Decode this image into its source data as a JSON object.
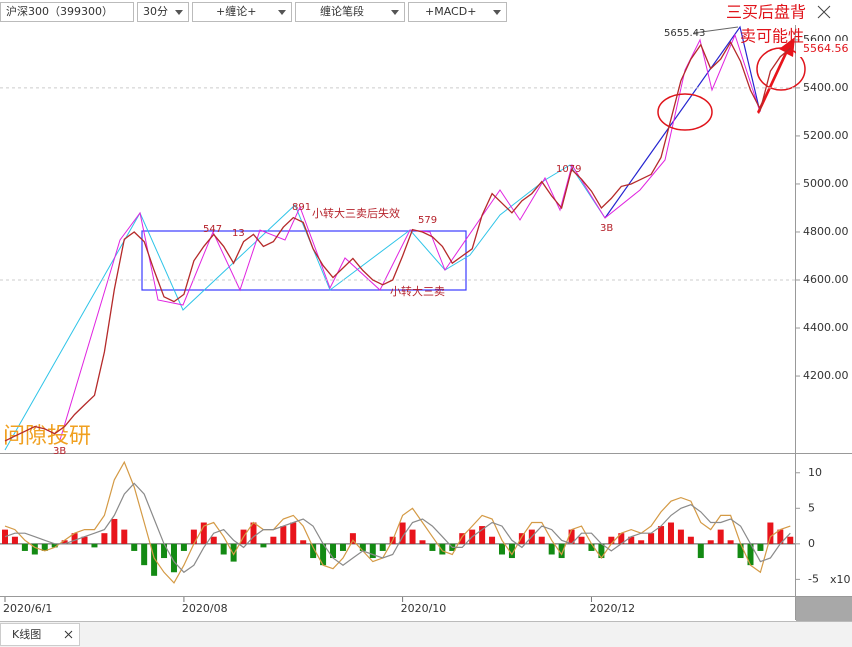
{
  "toolbar": {
    "symbol": "沪深300（399300）",
    "period": "30分",
    "indicator1": "+缠论+",
    "indicator2": "缠论笔段",
    "indicator3": "+MACD+"
  },
  "watermark": "间隙投研",
  "tab": "K线图",
  "chart_data": [
    {
      "type": "line",
      "series": [
        {
          "color": "#b52a2a",
          "values": [
            3930,
            3950,
            3970,
            3990,
            3980,
            3960,
            3990,
            4040,
            4080,
            4120,
            4300,
            4560,
            4770,
            4800,
            4760,
            4640,
            4530,
            4510,
            4540,
            4680,
            4740,
            4790,
            4740,
            4670,
            4760,
            4790,
            4740,
            4760,
            4820,
            4860,
            4840,
            4730,
            4660,
            4610,
            4650,
            4690,
            4640,
            4600,
            4580,
            4600,
            4700,
            4810,
            4800,
            4780,
            4740,
            4670,
            4700,
            4730,
            4870,
            4960,
            4920,
            4880,
            4930,
            4960,
            5010,
            4950,
            4900,
            5060,
            5020,
            4970,
            4900,
            4940,
            4990,
            5000,
            5020,
            5040,
            5110,
            5270,
            5430,
            5520,
            5580,
            5480,
            5520,
            5590,
            5510,
            5390,
            5310,
            5470,
            5530,
            5565
          ]
        }
      ],
      "ylim": [
        3892,
        5662
      ],
      "yticks": [
        {
          "value": 4200,
          "label": "4200.00"
        },
        {
          "value": 4400,
          "label": "4400.00"
        },
        {
          "value": 4600,
          "label": "4600.00"
        },
        {
          "value": 4800,
          "label": "4800.00"
        },
        {
          "value": 5000,
          "label": "5000.00"
        },
        {
          "value": 5200,
          "label": "5200.00"
        },
        {
          "value": 5400,
          "label": "5400.00"
        },
        {
          "value": 5600,
          "label": "5600.00"
        }
      ],
      "last_price_label": "5564.56",
      "annotations": [
        "5655.43",
        "891",
        "小转大三卖后失效",
        "547",
        "13",
        "579",
        "小转大三卖",
        "1079",
        "3B",
        "3B",
        "三买后盘背",
        "卖可能性"
      ]
    },
    {
      "type": "bar",
      "categories": [
        "2020/6/1",
        null,
        null,
        null,
        null,
        null,
        null,
        null,
        null,
        null,
        null,
        null,
        null,
        null,
        null,
        null,
        null,
        null,
        "2020/08",
        null,
        null,
        null,
        null,
        null,
        null,
        null,
        null,
        null,
        null,
        null,
        null,
        null,
        null,
        null,
        null,
        null,
        null,
        null,
        null,
        null,
        "2020/10",
        null,
        null,
        null,
        null,
        null,
        null,
        null,
        null,
        null,
        null,
        null,
        null,
        null,
        null,
        null,
        null,
        null,
        null,
        "2020/12",
        null,
        null,
        null,
        null,
        null,
        null,
        null,
        null,
        null,
        null,
        null,
        null,
        null,
        null,
        null,
        null,
        null,
        null,
        null,
        null
      ],
      "series": [
        {
          "up_color": "#e8141b",
          "down_color": "#138a13",
          "values": [
            2,
            1,
            -1,
            -1.5,
            -1,
            -0.5,
            0.5,
            1.5,
            1,
            -0.5,
            1.5,
            3.5,
            2,
            -1,
            -3,
            -4.5,
            -2,
            -4,
            -1,
            2,
            3,
            1,
            -1.5,
            -2.5,
            2,
            3,
            -0.5,
            1,
            2.5,
            3,
            0.5,
            -2,
            -3,
            -2,
            -1,
            1.5,
            -1,
            -2,
            -1,
            1,
            3,
            2,
            0.5,
            -1,
            -1.5,
            -1,
            1.5,
            2,
            2.5,
            1,
            -1.5,
            -2,
            1.5,
            2,
            1,
            -1.5,
            -2,
            2,
            1,
            -1,
            -2,
            1,
            1.5,
            1,
            0.5,
            1.5,
            2.5,
            3,
            2,
            1,
            -2,
            0.5,
            2,
            0.5,
            -2,
            -3,
            -1,
            3,
            2,
            1
          ]
        },
        {
          "color": "#d49a45",
          "values": [
            2.5,
            2,
            0.5,
            -0.5,
            -1,
            -0.5,
            0.5,
            1.5,
            2,
            2,
            4,
            9,
            11.5,
            8,
            3,
            -2,
            -4,
            -5.5,
            -3,
            0,
            2.5,
            3,
            1,
            -1.5,
            1,
            3,
            2,
            2,
            3.5,
            4,
            2.5,
            -0.5,
            -3,
            -3.5,
            -2,
            0.5,
            -1,
            -2.5,
            -2,
            0.5,
            4,
            5,
            3,
            1,
            -1,
            -1.5,
            1,
            2.5,
            4,
            3.5,
            0.5,
            -1.5,
            1,
            3,
            3,
            0.5,
            -1.5,
            2,
            2.5,
            0,
            -2,
            0,
            1.5,
            2,
            1.5,
            2.5,
            4.5,
            6,
            6.5,
            6,
            3,
            2,
            4,
            4,
            0,
            -3,
            -4,
            1,
            2,
            2.5
          ]
        },
        {
          "color": "#8a8a8a",
          "values": [
            1,
            1.5,
            1.5,
            1,
            0.5,
            0,
            0,
            0.5,
            1,
            1.5,
            2,
            4,
            7,
            8.5,
            7,
            3.5,
            0,
            -2.5,
            -4,
            -3,
            -0.5,
            1.5,
            2,
            0.5,
            -0.5,
            1,
            2,
            2,
            2.5,
            3,
            3.5,
            2.5,
            0,
            -2,
            -3,
            -2,
            -1,
            -1.5,
            -2,
            -1.5,
            1,
            3,
            3.5,
            2.5,
            1,
            -0.5,
            -0.5,
            1,
            2,
            3,
            2.5,
            0.5,
            -0.5,
            1,
            2.5,
            2,
            0.5,
            0,
            1.5,
            1.5,
            0,
            -1,
            0,
            1,
            1.5,
            1.5,
            2.5,
            4,
            5,
            5.5,
            4.5,
            3,
            3,
            3.5,
            2.5,
            0,
            -2.5,
            -2,
            0,
            1.5
          ]
        }
      ],
      "ylim": [
        -7.2,
        12.5
      ],
      "yticks": [
        -5,
        0,
        5,
        10
      ],
      "scale_label": "x10"
    }
  ]
}
